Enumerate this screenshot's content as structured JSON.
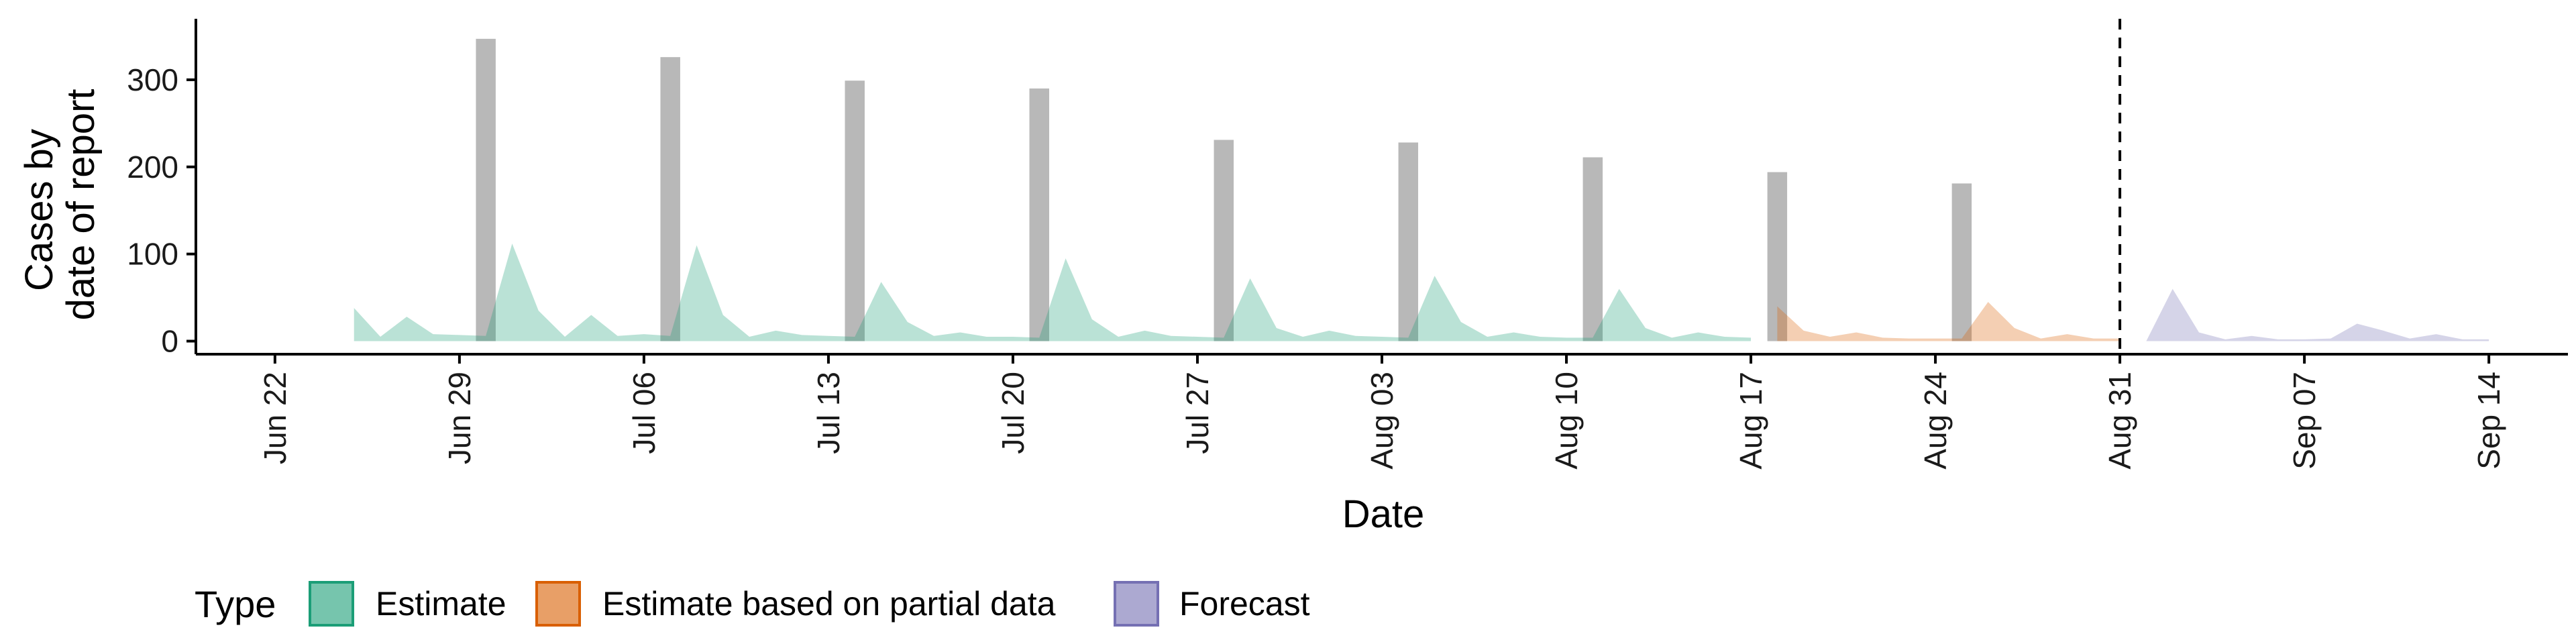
{
  "chart_data": {
    "type": "area",
    "xlabel": "Date",
    "ylabel_lines": [
      "Cases by",
      "date of report"
    ],
    "x_range": [
      "2020-06-19",
      "2020-09-17"
    ],
    "ylim": [
      -15,
      370
    ],
    "y_ticks": [
      0,
      100,
      200,
      300
    ],
    "x_ticks": [
      {
        "date": "2020-06-22",
        "label": "Jun 22"
      },
      {
        "date": "2020-06-29",
        "label": "Jun 29"
      },
      {
        "date": "2020-07-06",
        "label": "Jul 06"
      },
      {
        "date": "2020-07-13",
        "label": "Jul 13"
      },
      {
        "date": "2020-07-20",
        "label": "Jul 20"
      },
      {
        "date": "2020-07-27",
        "label": "Jul 27"
      },
      {
        "date": "2020-08-03",
        "label": "Aug 03"
      },
      {
        "date": "2020-08-10",
        "label": "Aug 10"
      },
      {
        "date": "2020-08-17",
        "label": "Aug 17"
      },
      {
        "date": "2020-08-24",
        "label": "Aug 24"
      },
      {
        "date": "2020-08-31",
        "label": "Aug 31"
      },
      {
        "date": "2020-09-07",
        "label": "Sep 07"
      },
      {
        "date": "2020-09-14",
        "label": "Sep 14"
      }
    ],
    "forecast_date": "2020-08-31",
    "reported_bars": [
      {
        "date": "2020-06-30",
        "value": 347
      },
      {
        "date": "2020-07-07",
        "value": 326
      },
      {
        "date": "2020-07-14",
        "value": 299
      },
      {
        "date": "2020-07-21",
        "value": 290
      },
      {
        "date": "2020-07-28",
        "value": 231
      },
      {
        "date": "2020-08-04",
        "value": 228
      },
      {
        "date": "2020-08-11",
        "value": 211
      },
      {
        "date": "2020-08-18",
        "value": 194
      },
      {
        "date": "2020-08-25",
        "value": 181
      }
    ],
    "series": [
      {
        "name": "Estimate",
        "color": "#1B9E77",
        "x": [
          "2020-06-25",
          "2020-06-26",
          "2020-06-27",
          "2020-06-28",
          "2020-06-29",
          "2020-06-30",
          "2020-07-01",
          "2020-07-02",
          "2020-07-03",
          "2020-07-04",
          "2020-07-05",
          "2020-07-06",
          "2020-07-07",
          "2020-07-08",
          "2020-07-09",
          "2020-07-10",
          "2020-07-11",
          "2020-07-12",
          "2020-07-13",
          "2020-07-14",
          "2020-07-15",
          "2020-07-16",
          "2020-07-17",
          "2020-07-18",
          "2020-07-19",
          "2020-07-20",
          "2020-07-21",
          "2020-07-22",
          "2020-07-23",
          "2020-07-24",
          "2020-07-25",
          "2020-07-26",
          "2020-07-27",
          "2020-07-28",
          "2020-07-29",
          "2020-07-30",
          "2020-07-31",
          "2020-08-01",
          "2020-08-02",
          "2020-08-03",
          "2020-08-04",
          "2020-08-05",
          "2020-08-06",
          "2020-08-07",
          "2020-08-08",
          "2020-08-09",
          "2020-08-10",
          "2020-08-11",
          "2020-08-12",
          "2020-08-13",
          "2020-08-14",
          "2020-08-15",
          "2020-08-16",
          "2020-08-17"
        ],
        "values": [
          38,
          5,
          28,
          8,
          7,
          6,
          112,
          35,
          5,
          30,
          6,
          8,
          6,
          110,
          30,
          5,
          12,
          7,
          6,
          5,
          68,
          22,
          6,
          10,
          5,
          5,
          4,
          95,
          25,
          5,
          12,
          6,
          5,
          4,
          72,
          15,
          5,
          12,
          6,
          5,
          4,
          75,
          22,
          5,
          10,
          5,
          4,
          4,
          60,
          15,
          4,
          10,
          5,
          4
        ]
      },
      {
        "name": "Estimate based on partial data",
        "color": "#D95F02",
        "x": [
          "2020-08-18",
          "2020-08-19",
          "2020-08-20",
          "2020-08-21",
          "2020-08-22",
          "2020-08-23",
          "2020-08-24",
          "2020-08-25",
          "2020-08-26",
          "2020-08-27",
          "2020-08-28",
          "2020-08-29",
          "2020-08-30",
          "2020-08-31"
        ],
        "values": [
          40,
          12,
          5,
          10,
          4,
          3,
          3,
          3,
          45,
          15,
          3,
          8,
          3,
          3
        ]
      },
      {
        "name": "Forecast",
        "color": "#7570B3",
        "x": [
          "2020-09-01",
          "2020-09-02",
          "2020-09-03",
          "2020-09-04",
          "2020-09-05",
          "2020-09-06",
          "2020-09-07",
          "2020-09-08",
          "2020-09-09",
          "2020-09-10",
          "2020-09-11",
          "2020-09-12",
          "2020-09-13",
          "2020-09-14"
        ],
        "values": [
          0,
          60,
          10,
          2,
          6,
          2,
          2,
          3,
          20,
          12,
          3,
          8,
          2,
          2
        ]
      }
    ],
    "legend": {
      "title": "Type",
      "position": "bottom-left",
      "items": [
        "Estimate",
        "Estimate based on partial data",
        "Forecast"
      ]
    },
    "grid": false
  },
  "colors": {
    "bar": "#B8B8B8",
    "estimate_fill": "#1B9E77",
    "partial_fill": "#D95F02",
    "forecast_fill": "#7570B3",
    "axis": "#000000"
  }
}
